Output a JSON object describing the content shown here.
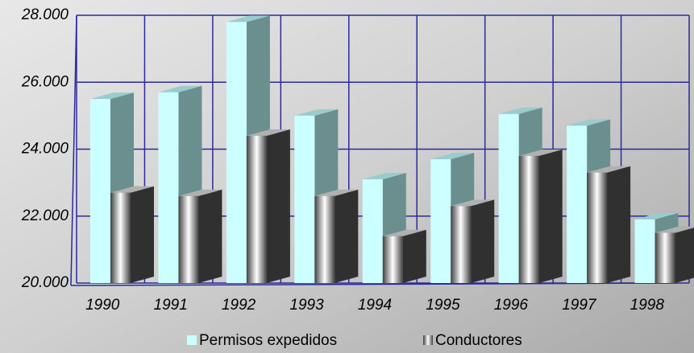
{
  "chart_data": {
    "type": "bar3d",
    "categories": [
      "1990",
      "1991",
      "1992",
      "1993",
      "1994",
      "1995",
      "1996",
      "1997",
      "1998"
    ],
    "series": [
      {
        "name": "Permisos expedidos",
        "color": "#ccffff",
        "values": [
          25500,
          25700,
          27800,
          25000,
          23100,
          23700,
          25050,
          24700,
          21900
        ]
      },
      {
        "name": "Conductores",
        "color": "#404040",
        "values": [
          22700,
          22600,
          24400,
          22600,
          21400,
          22300,
          23800,
          23300,
          21500
        ]
      }
    ],
    "ylim": [
      20000,
      28000
    ],
    "yticks": [
      {
        "value": 20000,
        "label": "20.000"
      },
      {
        "value": 22000,
        "label": "22.000"
      },
      {
        "value": 24000,
        "label": "24.000"
      },
      {
        "value": 26000,
        "label": "26.000"
      },
      {
        "value": 28000,
        "label": "28.000"
      }
    ],
    "grid": true,
    "legend": "bottom"
  }
}
